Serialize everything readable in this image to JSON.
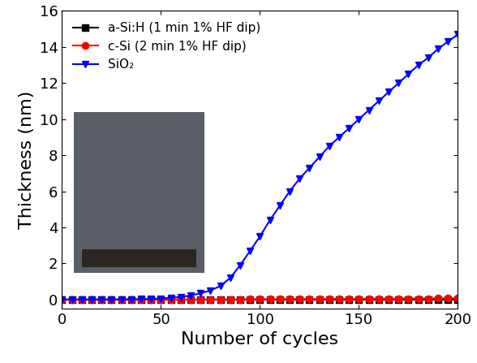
{
  "chart_data": {
    "type": "line",
    "x_label": "Number of cycles",
    "y_label": "Thickness (nm)",
    "xlim": [
      0,
      200
    ],
    "xticks": [
      0,
      50,
      100,
      150,
      200
    ],
    "ylim": [
      -0.5,
      16
    ],
    "yticks": [
      0,
      2,
      4,
      6,
      8,
      10,
      12,
      14,
      16
    ],
    "legend": "upper left",
    "x": [
      0,
      5,
      10,
      15,
      20,
      25,
      30,
      35,
      40,
      45,
      50,
      55,
      60,
      65,
      70,
      75,
      80,
      85,
      90,
      95,
      100,
      105,
      110,
      115,
      120,
      125,
      130,
      135,
      140,
      145,
      150,
      155,
      160,
      165,
      170,
      175,
      180,
      185,
      190,
      195,
      200
    ],
    "series": [
      {
        "name": "a-Si:H (1 min 1% HF dip)",
        "color": "#000000",
        "marker": "s",
        "line_style": "solid",
        "values": [
          0,
          0,
          0,
          0,
          0,
          0,
          0,
          0,
          0,
          0,
          0,
          0,
          0,
          0,
          0,
          0,
          0,
          0,
          0,
          0,
          0,
          0,
          0,
          0,
          0,
          0,
          0,
          0,
          0,
          0,
          0,
          0,
          0,
          0,
          0,
          0,
          0,
          0,
          0,
          0,
          0
        ]
      },
      {
        "name": "c-Si (2 min 1% HF dip)",
        "color": "#ff0000",
        "marker": "o",
        "line_style": "solid",
        "values": [
          0,
          0,
          0,
          0,
          0,
          0,
          0,
          0,
          0,
          0,
          0,
          0,
          0,
          0,
          0,
          0.01,
          0.01,
          0.01,
          0.01,
          0.02,
          0.02,
          0.02,
          0.02,
          0.03,
          0.03,
          0.03,
          0.03,
          0.04,
          0.04,
          0.04,
          0.04,
          0.05,
          0.05,
          0.05,
          0.05,
          0.06,
          0.06,
          0.06,
          0.07,
          0.07,
          0.08
        ]
      },
      {
        "name": "SiO₂",
        "color": "#0000ff",
        "marker": "v",
        "line_style": "solid",
        "values": [
          0,
          0,
          0,
          0,
          0,
          0,
          0.01,
          0.01,
          0.02,
          0.03,
          0.06,
          0.1,
          0.15,
          0.22,
          0.35,
          0.5,
          0.75,
          1.2,
          1.9,
          2.7,
          3.5,
          4.4,
          5.2,
          6.0,
          6.7,
          7.3,
          7.9,
          8.5,
          9.0,
          9.5,
          10.0,
          10.5,
          11.0,
          11.5,
          12.0,
          12.5,
          13.0,
          13.4,
          13.9,
          14.3,
          14.7
        ]
      }
    ]
  }
}
